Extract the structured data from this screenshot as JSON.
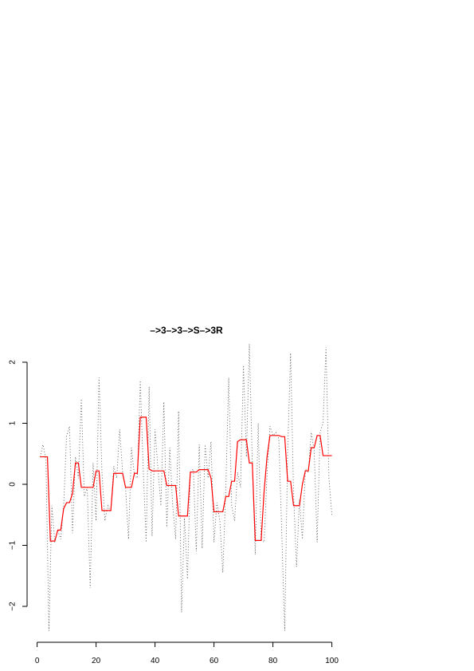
{
  "chart_data": {
    "type": "line",
    "title": "–>3–>3–>S–>3R",
    "xlabel": "",
    "ylabel": "",
    "xlim": [
      0,
      100
    ],
    "ylim": [
      -2.5,
      2.3
    ],
    "xticks": [
      0,
      20,
      40,
      60,
      80,
      100
    ],
    "yticks": [
      -2,
      -1,
      0,
      1,
      2
    ],
    "tick_labels": {
      "x": [
        "0",
        "20",
        "40",
        "60",
        "80",
        "100"
      ],
      "y": [
        "−2",
        "−1",
        "0",
        "1",
        "2"
      ]
    },
    "grid": false,
    "colors": {
      "raw": "#555555",
      "smoothed": "#ff0000"
    },
    "series": [
      {
        "style": "dotted",
        "x": [
          1,
          2,
          3,
          4,
          5,
          6,
          7,
          8,
          9,
          10,
          11,
          12,
          13,
          14,
          15,
          16,
          17,
          18,
          19,
          20,
          21,
          22,
          23,
          24,
          25,
          26,
          27,
          28,
          29,
          30,
          31,
          32,
          33,
          34,
          35,
          36,
          37,
          38,
          39,
          40,
          41,
          42,
          43,
          44,
          45,
          46,
          47,
          48,
          49,
          50,
          51,
          52,
          53,
          54,
          55,
          56,
          57,
          58,
          59,
          60,
          61,
          62,
          63,
          64,
          65,
          66,
          67,
          68,
          69,
          70,
          71,
          72,
          73,
          74,
          75,
          76,
          77,
          78,
          79,
          80,
          81,
          82,
          83,
          84,
          85,
          86,
          87,
          88,
          89,
          90,
          91,
          92,
          93,
          94,
          95,
          96,
          97,
          98,
          99,
          100
        ],
        "values": [
          0.45,
          0.65,
          0.4,
          -2.4,
          -0.35,
          -0.95,
          -0.75,
          -0.9,
          -0.35,
          0.8,
          0.95,
          -0.8,
          0.45,
          0.1,
          1.4,
          -0.2,
          -0.05,
          -1.7,
          0.35,
          -0.6,
          1.75,
          0.2,
          -0.6,
          -0.35,
          -0.45,
          0.3,
          0.1,
          0.9,
          0.2,
          -0.05,
          -0.9,
          0.6,
          0.15,
          0.1,
          1.7,
          0.25,
          -0.95,
          1.6,
          -0.85,
          0.9,
          0.25,
          -0.35,
          1.35,
          -0.7,
          0.6,
          -0.35,
          -0.9,
          1.2,
          -2.1,
          -0.55,
          -1.55,
          0.2,
          0.25,
          -1.1,
          0.65,
          -1.05,
          0.65,
          0.1,
          0.7,
          -0.95,
          -0.3,
          -0.6,
          -1.45,
          -0.1,
          1.75,
          -0.35,
          -0.6,
          0.2,
          -0.05,
          1.95,
          0.45,
          2.3,
          0.35,
          -1.15,
          1.0,
          -0.9,
          -0.95,
          0.15,
          0.95,
          0.8,
          0.85,
          0.75,
          -0.8,
          -2.4,
          0.55,
          2.15,
          -0.15,
          -1.35,
          -0.25,
          -0.9,
          0.25,
          0.2,
          0.85,
          0.55,
          -0.95,
          0.85,
          1.0,
          2.25,
          0.1,
          -0.5
        ]
      },
      {
        "style": "solid",
        "x": [
          1,
          3.5,
          4.5,
          6,
          7,
          8,
          9,
          10,
          11,
          12,
          13,
          14,
          15,
          16,
          17,
          18,
          19,
          20,
          21,
          22,
          23,
          24,
          25,
          26,
          27,
          28,
          29,
          30,
          31,
          32,
          33,
          34,
          35,
          36,
          37,
          38,
          39,
          40,
          41,
          42,
          43,
          44,
          45,
          46,
          47,
          48,
          49,
          50,
          51,
          52,
          53,
          54,
          55,
          56,
          57,
          58,
          59,
          60,
          61,
          62,
          63,
          64,
          65,
          66,
          67,
          68,
          69,
          70,
          71,
          72,
          73,
          74,
          75,
          76,
          77,
          78,
          79,
          80,
          81,
          82,
          83,
          84,
          85,
          86,
          87,
          88,
          89,
          90,
          91,
          92,
          93,
          94,
          95,
          96,
          97,
          98,
          99,
          100
        ],
        "values": [
          0.45,
          0.45,
          -0.93,
          -0.93,
          -0.75,
          -0.75,
          -0.4,
          -0.3,
          -0.3,
          -0.15,
          0.35,
          0.35,
          -0.05,
          -0.05,
          -0.05,
          -0.05,
          -0.05,
          0.22,
          0.22,
          -0.43,
          -0.43,
          -0.43,
          -0.43,
          0.18,
          0.18,
          0.18,
          0.18,
          -0.05,
          -0.05,
          -0.05,
          0.18,
          0.18,
          1.1,
          1.1,
          1.1,
          0.25,
          0.22,
          0.22,
          0.22,
          0.22,
          0.22,
          -0.02,
          -0.02,
          -0.02,
          -0.02,
          -0.52,
          -0.52,
          -0.52,
          -0.52,
          0.2,
          0.2,
          0.2,
          0.24,
          0.24,
          0.24,
          0.24,
          0.1,
          -0.45,
          -0.45,
          -0.45,
          -0.45,
          -0.2,
          -0.2,
          0.05,
          0.05,
          0.7,
          0.73,
          0.73,
          0.73,
          0.35,
          0.35,
          -0.92,
          -0.92,
          -0.92,
          -0.12,
          0.45,
          0.8,
          0.8,
          0.8,
          0.8,
          0.78,
          0.78,
          0.05,
          0.05,
          -0.35,
          -0.35,
          -0.35,
          0.0,
          0.22,
          0.22,
          0.6,
          0.6,
          0.8,
          0.8,
          0.47,
          0.47,
          0.47,
          0.47
        ]
      }
    ]
  }
}
